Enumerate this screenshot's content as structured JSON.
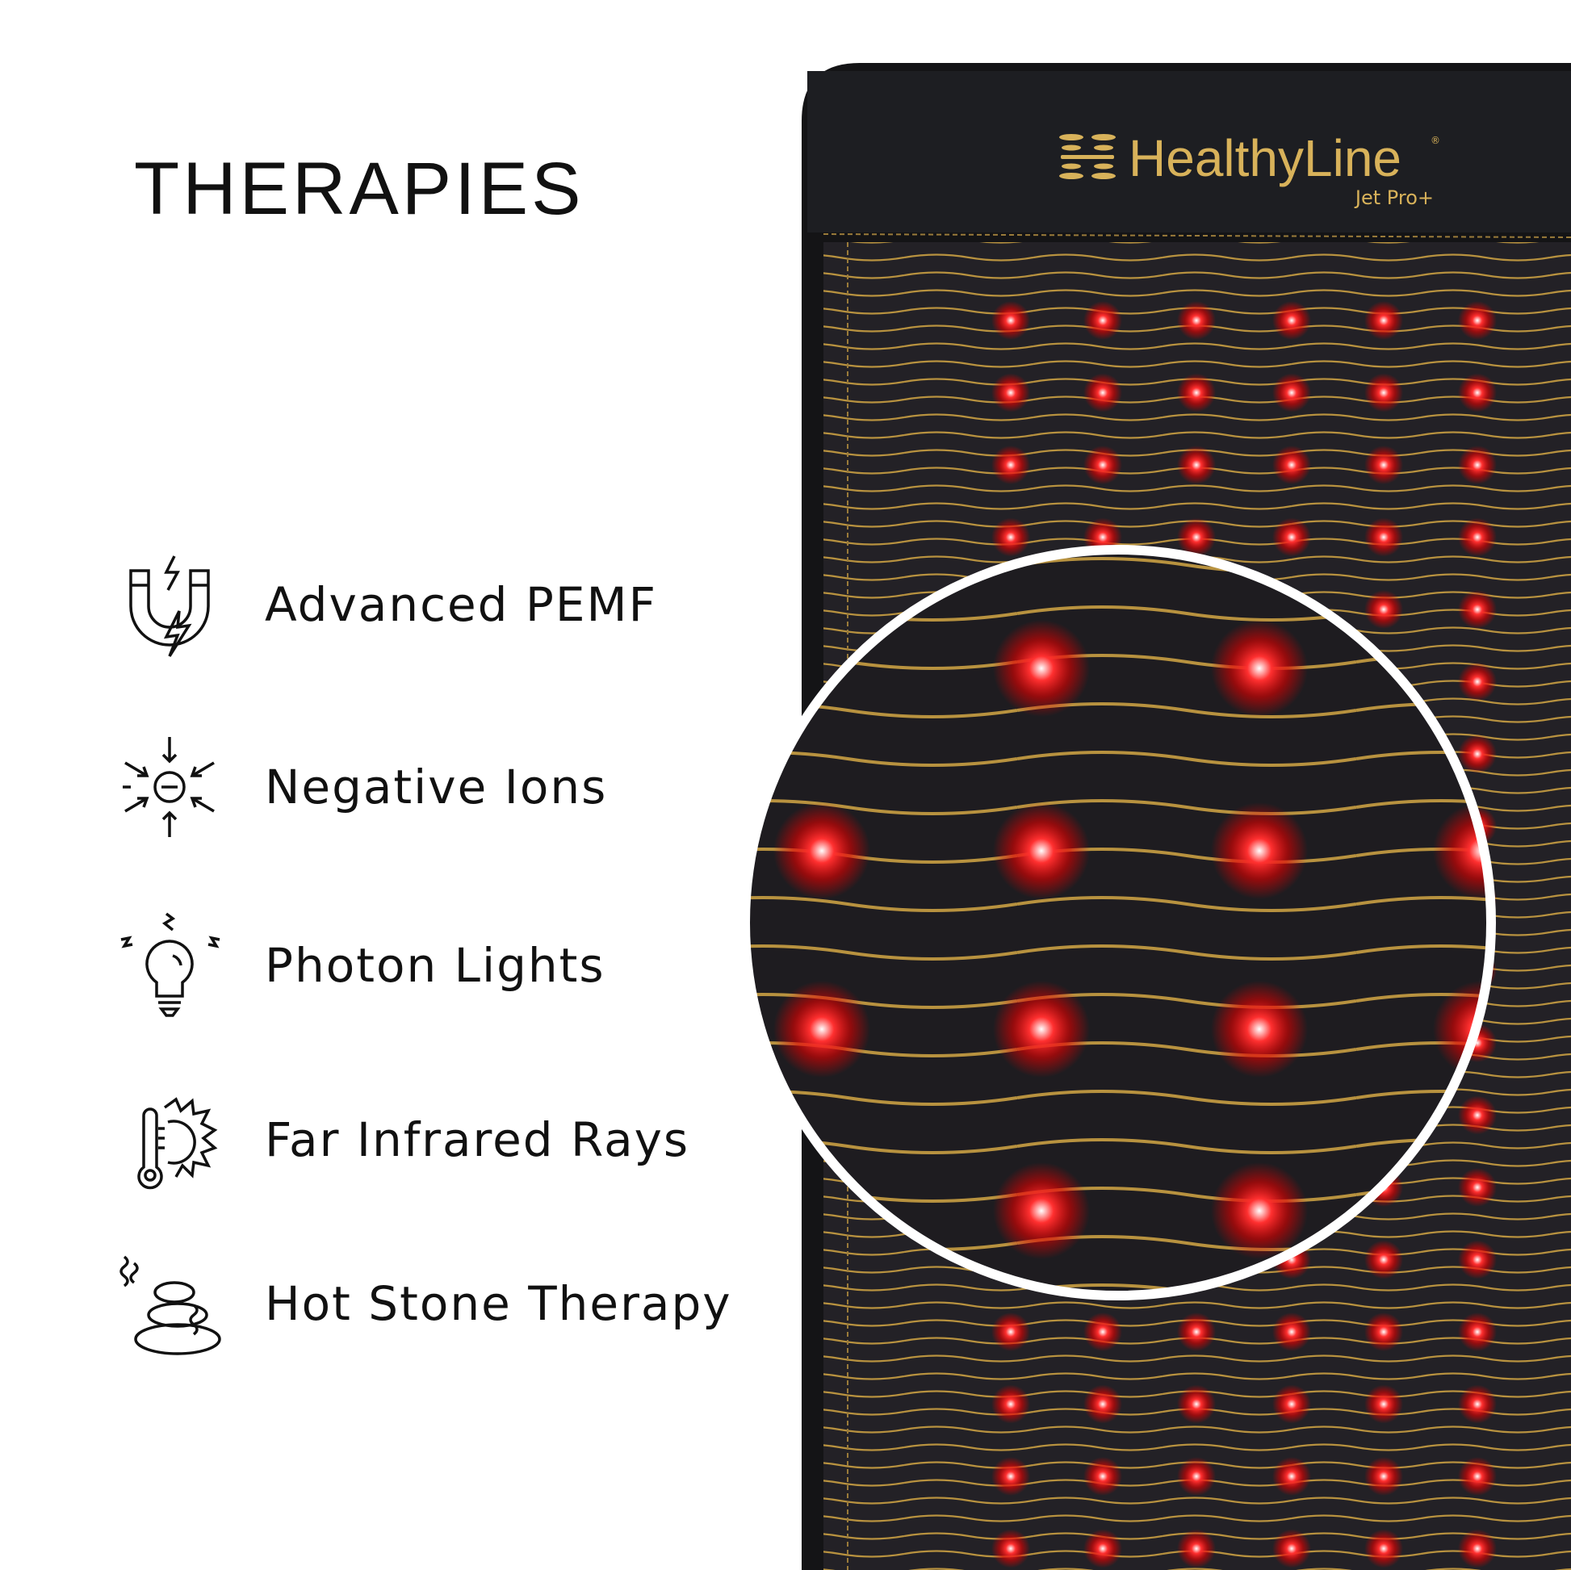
{
  "heading": "THERAPIES",
  "features": [
    {
      "label": "Advanced PEMF",
      "icon": "magnet-lightning-icon"
    },
    {
      "label": "Negative Ions",
      "icon": "negative-ion-icon"
    },
    {
      "label": "Photon Lights",
      "icon": "light-bulb-icon"
    },
    {
      "label": "Far Infrared Rays",
      "icon": "thermometer-sun-icon"
    },
    {
      "label": "Hot Stone Therapy",
      "icon": "hot-stones-icon"
    }
  ],
  "product": {
    "brand": "HealthyLine",
    "model": "Jet Pro+",
    "registered_mark": "®"
  },
  "colors": {
    "mat": "#1a1a1c",
    "gold": "#c9a24a",
    "led": "#ff1a1a"
  }
}
